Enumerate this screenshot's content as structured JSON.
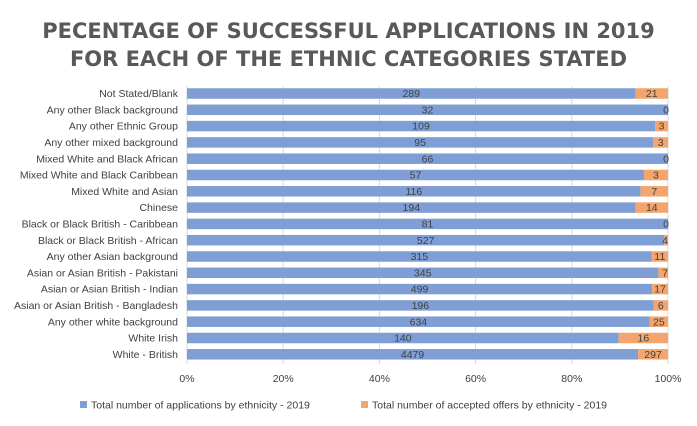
{
  "chart_data": {
    "type": "bar",
    "stacked": "percent",
    "orientation": "horizontal",
    "title": "PECENTAGE OF SUCCESSFUL APPLICATIONS IN 2019",
    "subtitle": "FOR EACH OF THE ETHNIC CATEGORIES STATED",
    "categories": [
      "Not Stated/Blank",
      "Any other Black background",
      "Any other Ethnic Group",
      "Any other mixed background",
      "Mixed White and Black African",
      "Mixed White and Black Caribbean",
      "Mixed White and Asian",
      "Chinese",
      "Black or Black British - Caribbean",
      "Black or Black British - African",
      "Any other Asian background",
      "Asian or Asian British - Pakistani",
      "Asian or Asian British - Indian",
      "Asian or Asian British - Bangladesh",
      "Any other white background",
      "White Irish",
      "White - British"
    ],
    "series": [
      {
        "name": "Total number of applications by ethnicity - 2019",
        "color": "#7f9ed6",
        "values": [
          289,
          32,
          109,
          95,
          66,
          57,
          116,
          194,
          81,
          527,
          315,
          345,
          499,
          196,
          634,
          140,
          4479
        ]
      },
      {
        "name": "Total number of accepted offers by ethnicity - 2019",
        "color": "#f4a46d",
        "values": [
          21,
          0,
          3,
          3,
          0,
          3,
          7,
          14,
          0,
          4,
          11,
          7,
          17,
          6,
          25,
          16,
          297
        ]
      }
    ],
    "x_ticks": [
      "0%",
      "20%",
      "40%",
      "60%",
      "80%",
      "100%"
    ],
    "xlim": [
      0,
      100
    ],
    "grid": true,
    "legend": "bottom"
  }
}
